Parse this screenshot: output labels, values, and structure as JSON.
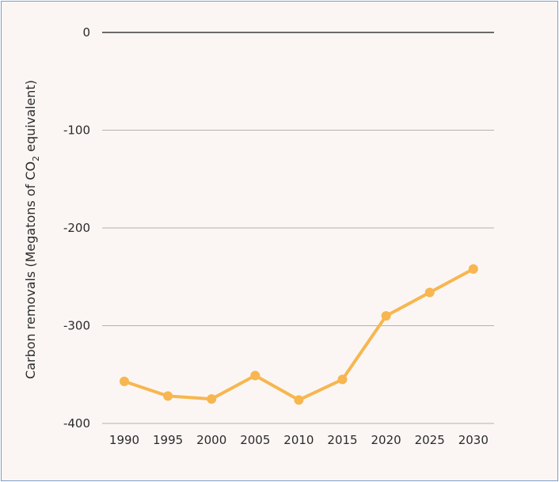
{
  "chart_data": {
    "type": "line",
    "title": "",
    "xlabel": "",
    "ylabel": {
      "prefix": "Carbon removals (Megatons of CO",
      "subscript": "2",
      "suffix": " equivalent)"
    },
    "x": [
      "1990",
      "1995",
      "2000",
      "2005",
      "2010",
      "2015",
      "2020",
      "2025",
      "2030"
    ],
    "series": [
      {
        "values": [
          -357,
          -372,
          -375,
          -351,
          -376,
          -355,
          -290,
          -266,
          -242
        ]
      }
    ],
    "ylim": [
      -400,
      0
    ],
    "yticks": [
      "0",
      "-100",
      "-200",
      "-300",
      "-400"
    ],
    "grid": true,
    "legend": "none",
    "colors": {
      "line": "#f7b64f",
      "gridline": "#b7b0ad",
      "zeroline": "#3c3c3c",
      "background": "#fbf6f4",
      "border": "#7d9dcb"
    }
  }
}
